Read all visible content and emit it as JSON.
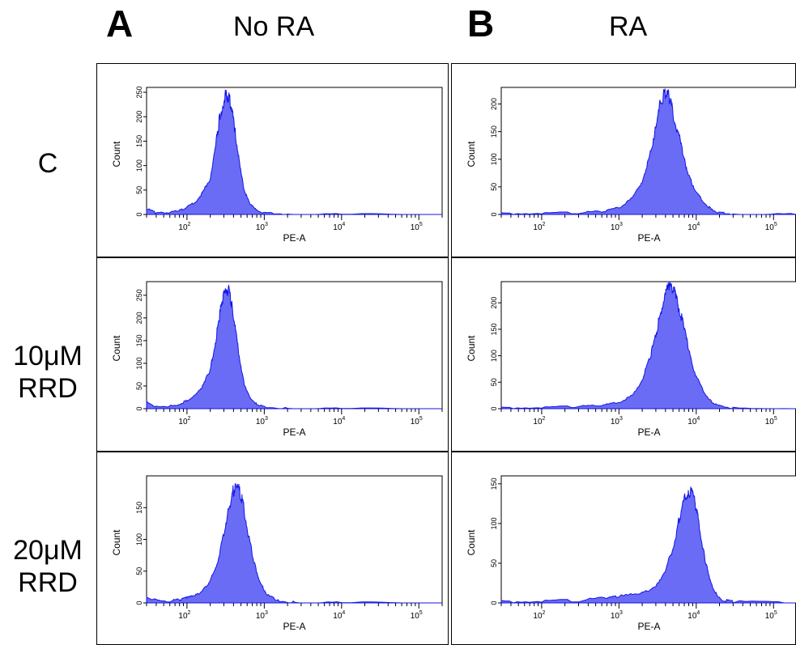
{
  "headers": {
    "panel_a": {
      "letter": "A",
      "title": "No RA"
    },
    "panel_b": {
      "letter": "B",
      "title": "RA"
    }
  },
  "row_labels": [
    {
      "line1": "C",
      "line2": ""
    },
    {
      "line1": "10μM",
      "line2": "RRD"
    },
    {
      "line1": "20μM",
      "line2": "RRD"
    }
  ],
  "colors": {
    "fill": "#6a6cf5",
    "stroke": "#1515e6",
    "axis": "#000000"
  },
  "chart_data": [
    {
      "type": "area",
      "panel": "A",
      "row": "C",
      "xlabel": "PE-A",
      "ylabel": "Count",
      "xscale": "log",
      "xlim": [
        30,
        200000
      ],
      "xticks": [
        "10^2",
        "10^3",
        "10^4",
        "10^5"
      ],
      "ylim": [
        0,
        260
      ],
      "yticks": [
        0,
        50,
        100,
        150,
        200,
        250
      ],
      "x": [
        30,
        40,
        60,
        80,
        100,
        130,
        160,
        200,
        230,
        260,
        290,
        320,
        350,
        380,
        420,
        480,
        550,
        650,
        800,
        1000,
        2000,
        10000,
        200000
      ],
      "y": [
        12,
        3,
        4,
        8,
        15,
        26,
        45,
        75,
        130,
        190,
        225,
        245,
        240,
        215,
        170,
        100,
        50,
        22,
        8,
        3,
        1,
        0,
        0
      ]
    },
    {
      "type": "area",
      "panel": "B",
      "row": "C",
      "xlabel": "PE-A",
      "ylabel": "Count",
      "xscale": "log",
      "xlim": [
        30,
        200000
      ],
      "xticks": [
        "10^2",
        "10^3",
        "10^4",
        "10^5"
      ],
      "ylim": [
        0,
        230
      ],
      "yticks": [
        0,
        50,
        100,
        150,
        200
      ],
      "x": [
        30,
        100,
        300,
        600,
        1000,
        1500,
        2000,
        2500,
        3000,
        3500,
        4000,
        4500,
        5000,
        6000,
        7000,
        8000,
        10000,
        13000,
        16000,
        20000,
        30000,
        200000
      ],
      "y": [
        2,
        2,
        3,
        5,
        12,
        30,
        60,
        105,
        160,
        205,
        220,
        210,
        185,
        140,
        100,
        70,
        40,
        20,
        8,
        3,
        1,
        0
      ]
    },
    {
      "type": "area",
      "panel": "A",
      "row": "10μM RRD",
      "xlabel": "PE-A",
      "ylabel": "Count",
      "xscale": "log",
      "xlim": [
        30,
        200000
      ],
      "xticks": [
        "10^2",
        "10^3",
        "10^4",
        "10^5"
      ],
      "ylim": [
        0,
        280
      ],
      "yticks": [
        0,
        50,
        100,
        150,
        200,
        250
      ],
      "x": [
        30,
        40,
        60,
        80,
        100,
        130,
        160,
        200,
        230,
        260,
        290,
        320,
        350,
        380,
        420,
        480,
        550,
        650,
        800,
        1000,
        2000,
        10000,
        200000
      ],
      "y": [
        15,
        4,
        6,
        10,
        18,
        30,
        50,
        85,
        140,
        200,
        240,
        265,
        258,
        230,
        180,
        110,
        55,
        25,
        10,
        4,
        1,
        0,
        0
      ]
    },
    {
      "type": "area",
      "panel": "B",
      "row": "10μM RRD",
      "xlabel": "PE-A",
      "ylabel": "Count",
      "xscale": "log",
      "xlim": [
        30,
        200000
      ],
      "xticks": [
        "10^2",
        "10^3",
        "10^4",
        "10^5"
      ],
      "ylim": [
        0,
        240
      ],
      "yticks": [
        0,
        50,
        100,
        150,
        200
      ],
      "x": [
        30,
        100,
        300,
        600,
        1000,
        1500,
        2000,
        2500,
        3000,
        3500,
        4000,
        4500,
        5000,
        5500,
        6000,
        7000,
        8000,
        10000,
        13000,
        16000,
        20000,
        30000,
        200000
      ],
      "y": [
        2,
        2,
        4,
        6,
        12,
        25,
        55,
        95,
        140,
        185,
        215,
        230,
        225,
        210,
        190,
        150,
        110,
        60,
        28,
        12,
        5,
        1,
        0
      ]
    },
    {
      "type": "area",
      "panel": "A",
      "row": "20μM RRD",
      "xlabel": "PE-A",
      "ylabel": "Count",
      "xscale": "log",
      "xlim": [
        30,
        200000
      ],
      "xticks": [
        "10^2",
        "10^3",
        "10^4",
        "10^5"
      ],
      "ylim": [
        0,
        200
      ],
      "yticks": [
        0,
        50,
        100,
        150
      ],
      "x": [
        30,
        40,
        60,
        80,
        100,
        130,
        160,
        200,
        250,
        300,
        350,
        400,
        450,
        500,
        550,
        650,
        750,
        900,
        1100,
        1500,
        2500,
        10000,
        200000
      ],
      "y": [
        10,
        4,
        3,
        5,
        8,
        12,
        20,
        35,
        65,
        110,
        150,
        178,
        182,
        170,
        145,
        95,
        60,
        30,
        12,
        4,
        1,
        0,
        0
      ]
    },
    {
      "type": "area",
      "panel": "B",
      "row": "20μM RRD",
      "xlabel": "PE-A",
      "ylabel": "Count",
      "xscale": "log",
      "xlim": [
        30,
        200000
      ],
      "xticks": [
        "10^2",
        "10^3",
        "10^4",
        "10^5"
      ],
      "ylim": [
        0,
        160
      ],
      "yticks": [
        0,
        50,
        100,
        150
      ],
      "x": [
        30,
        100,
        300,
        700,
        1000,
        2000,
        3000,
        4000,
        5000,
        6000,
        7000,
        8000,
        9000,
        10000,
        11000,
        13000,
        15000,
        18000,
        22000,
        30000,
        200000
      ],
      "y": [
        2,
        2,
        3,
        6,
        8,
        12,
        22,
        40,
        70,
        105,
        130,
        140,
        138,
        120,
        95,
        55,
        28,
        12,
        4,
        1,
        0
      ]
    }
  ]
}
